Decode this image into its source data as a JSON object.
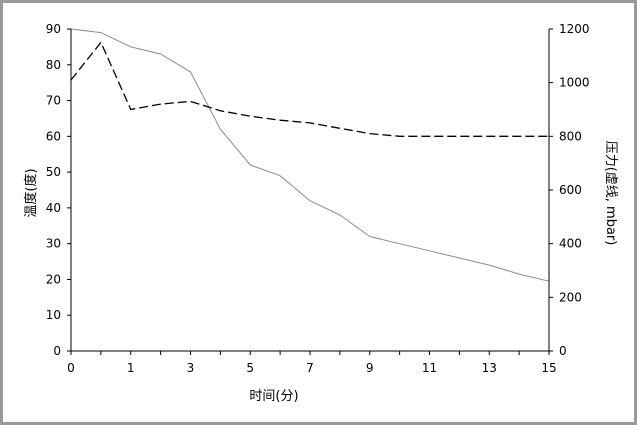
{
  "chart_data": {
    "type": "line",
    "xlabel": "时间(分)",
    "ylabel": "温度(度)",
    "y2label": "压力(虚线, mbar)",
    "xlim": [
      0,
      16
    ],
    "ylim": [
      0,
      90
    ],
    "y2lim": [
      0,
      1200
    ],
    "x_ticks": [
      0,
      1,
      3,
      5,
      7,
      9,
      11,
      13,
      15
    ],
    "y_ticks": [
      0,
      10,
      20,
      30,
      40,
      50,
      60,
      70,
      80,
      90
    ],
    "y2_ticks": [
      0,
      200,
      400,
      600,
      800,
      1000,
      1200
    ],
    "grid": false,
    "legend": "none",
    "series": [
      {
        "axis": "left",
        "style": "solid",
        "color": "#8c8c8c",
        "points": [
          [
            0,
            90
          ],
          [
            1,
            89
          ],
          [
            2,
            85
          ],
          [
            3,
            83
          ],
          [
            4,
            78
          ],
          [
            5,
            62
          ],
          [
            6,
            52
          ],
          [
            7,
            49
          ],
          [
            8,
            42
          ],
          [
            9,
            38
          ],
          [
            10,
            32
          ],
          [
            11,
            30
          ],
          [
            12,
            28
          ],
          [
            13,
            26
          ],
          [
            14,
            24
          ],
          [
            15,
            21.5
          ],
          [
            16,
            19.5
          ]
        ]
      },
      {
        "axis": "right",
        "style": "dashed",
        "color": "#000000",
        "points": [
          [
            0,
            1010
          ],
          [
            1,
            1150
          ],
          [
            2,
            900
          ],
          [
            3,
            920
          ],
          [
            4,
            930
          ],
          [
            5,
            895
          ],
          [
            6,
            875
          ],
          [
            7,
            860
          ],
          [
            8,
            850
          ],
          [
            9,
            830
          ],
          [
            10,
            810
          ],
          [
            11,
            800
          ],
          [
            12,
            800
          ],
          [
            13,
            800
          ],
          [
            14,
            800
          ],
          [
            15,
            800
          ],
          [
            16,
            800
          ]
        ]
      }
    ]
  }
}
